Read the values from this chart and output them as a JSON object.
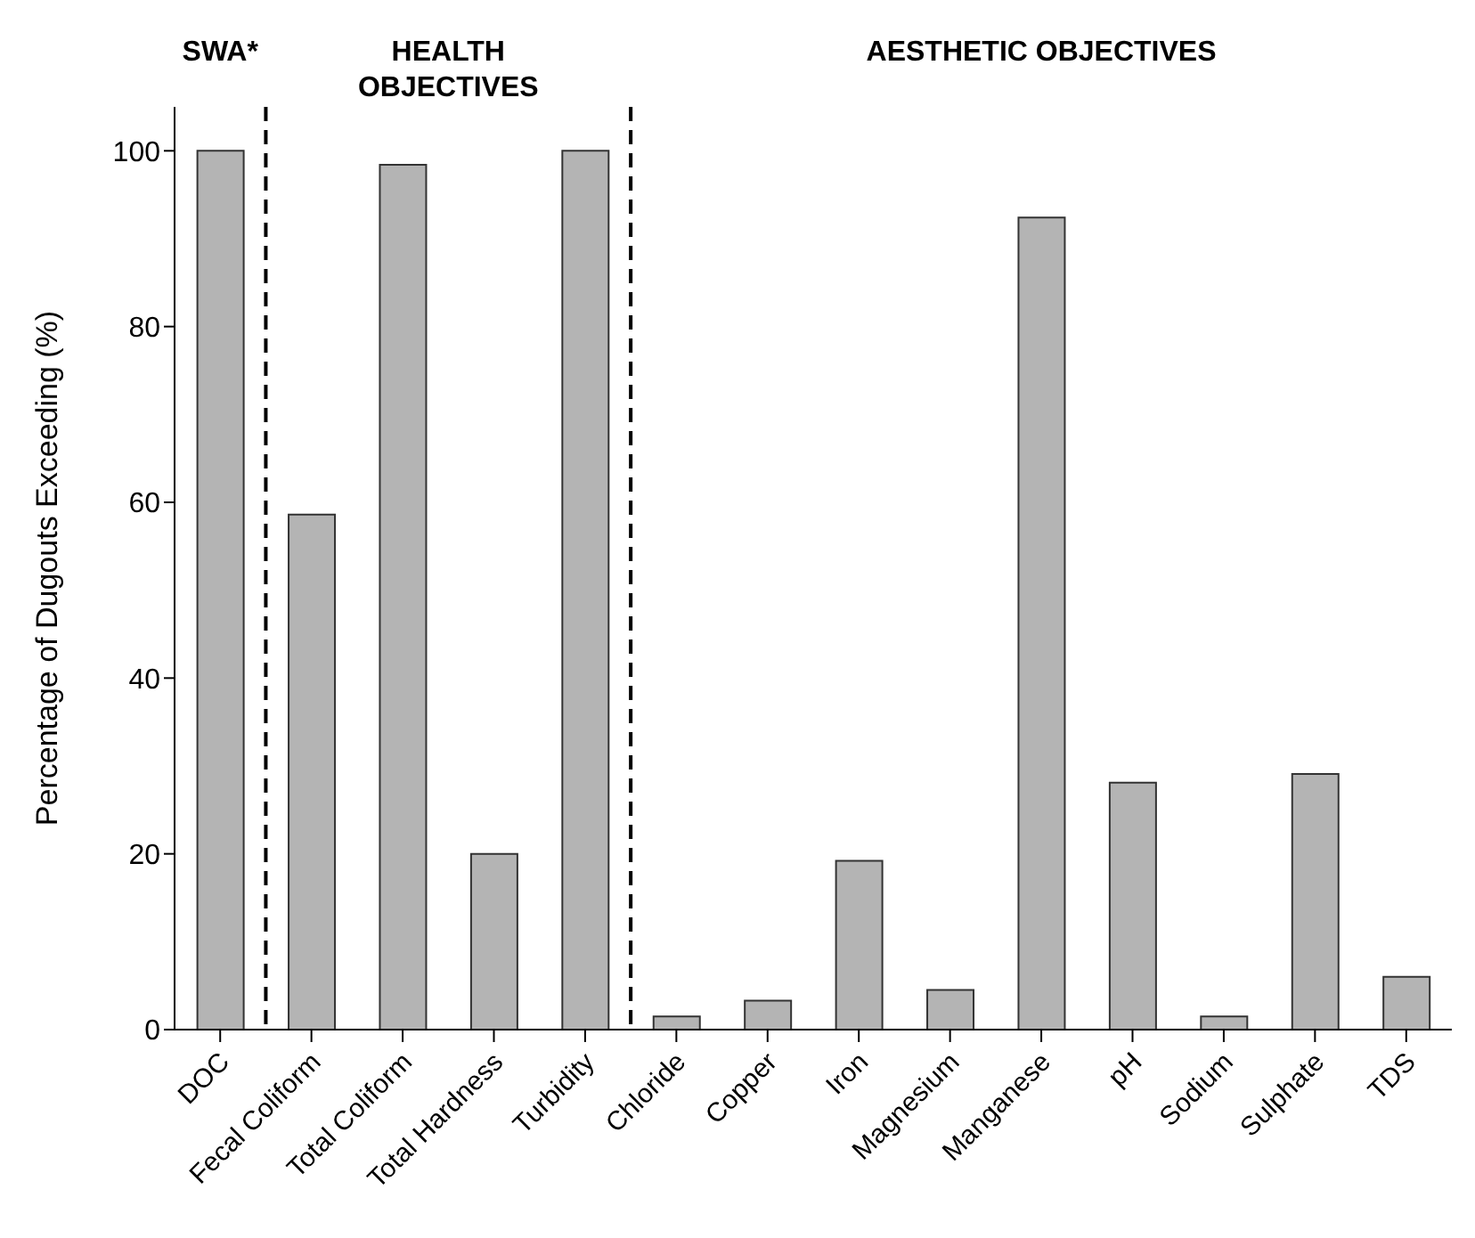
{
  "chart_data": {
    "type": "bar",
    "ylabel": "Percentage of Dugouts Exceeding (%)",
    "categories": [
      "DOC",
      "Fecal Coliform",
      "Total Coliform",
      "Total Hardness",
      "Turbidity",
      "Chloride",
      "Copper",
      "Iron",
      "Magnesium",
      "Manganese",
      "pH",
      "Sodium",
      "Sulphate",
      "TDS"
    ],
    "values": [
      100,
      58.6,
      98.4,
      20,
      100,
      1.5,
      3.3,
      19.2,
      4.5,
      92.4,
      28.1,
      1.5,
      29.1,
      6
    ],
    "color": "#b4b4b4",
    "ylim": [
      0,
      105
    ],
    "yticks": [
      0,
      20,
      40,
      60,
      80,
      100
    ],
    "grid": false,
    "annotations": [
      "SWA*",
      "HEALTH OBJECTIVES",
      "AESTHETIC OBJECTIVES"
    ]
  }
}
